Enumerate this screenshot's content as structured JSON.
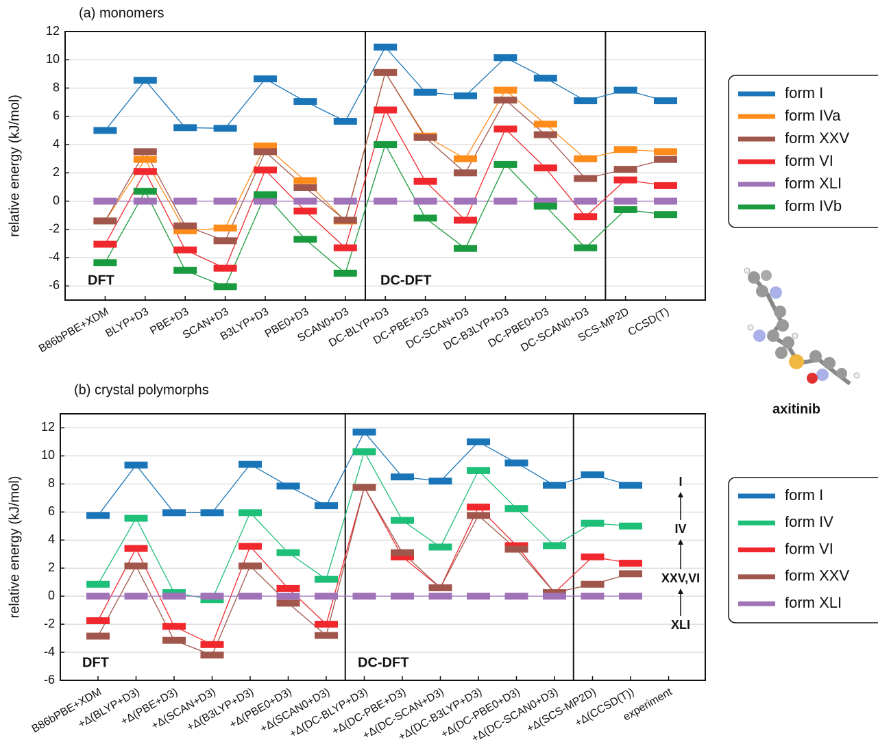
{
  "chart_data": [
    {
      "type": "line",
      "title": "(a) monomers",
      "y_label": "relative energy (kJ/mol)",
      "categories": [
        "B86bPBE+XDM",
        "BLYP+D3",
        "PBE+D3",
        "SCAN+D3",
        "B3LYP+D3",
        "PBE0+D3",
        "SCAN0+D3",
        "DC-BLYP+D3",
        "DC-PBE+D3",
        "DC-SCAN+D3",
        "DC-B3LYP+D3",
        "DC-PBE0+D3",
        "DC-SCAN0+D3",
        "SCS-MP2D",
        "CCSD(T)"
      ],
      "series": [
        {
          "name": "form I",
          "color": "#1a75b8",
          "values": [
            5.0,
            8.55,
            5.2,
            5.15,
            8.65,
            7.05,
            5.65,
            10.9,
            7.7,
            7.45,
            10.15,
            8.7,
            7.1,
            7.85,
            7.1
          ]
        },
        {
          "name": "form IVa",
          "color": "#ff8c1a",
          "values": [
            -1.4,
            2.95,
            -2.1,
            -1.9,
            3.9,
            1.45,
            -1.4,
            9.1,
            4.6,
            3.0,
            7.85,
            5.45,
            3.0,
            3.65,
            3.5
          ]
        },
        {
          "name": "form XXV",
          "color": "#a0564b",
          "values": [
            -1.4,
            3.5,
            -1.75,
            -2.8,
            3.5,
            0.95,
            -1.35,
            9.1,
            4.5,
            2.0,
            7.15,
            4.7,
            1.6,
            2.25,
            2.95
          ]
        },
        {
          "name": "form VI",
          "color": "#f0282d",
          "values": [
            -3.05,
            2.1,
            -3.45,
            -4.75,
            2.2,
            -0.7,
            -3.3,
            6.45,
            1.4,
            -1.35,
            5.1,
            2.35,
            -1.1,
            1.5,
            1.1
          ]
        },
        {
          "name": "form XLI",
          "color": "#a073b8",
          "values": [
            0,
            0,
            0,
            0,
            0,
            0,
            0,
            0,
            0,
            0,
            0,
            0,
            0,
            0,
            0
          ]
        },
        {
          "name": "form IVb",
          "color": "#1a9a3e",
          "values": [
            -4.35,
            0.7,
            -4.9,
            -6.05,
            0.45,
            -2.7,
            -5.1,
            4.0,
            -1.2,
            -3.35,
            2.6,
            -0.35,
            -3.3,
            -0.6,
            -0.95
          ]
        }
      ],
      "ylim": [
        -7,
        12
      ],
      "yticks": [
        -6,
        -4,
        -2,
        0,
        2,
        4,
        6,
        8,
        10,
        12
      ],
      "grid": true,
      "annotations": [
        "DFT",
        "DC-DFT"
      ]
    },
    {
      "type": "line",
      "title": "(b) crystal polymorphs",
      "y_label": "relative energy (kJ/mol)",
      "categories": [
        "B86bPBE+XDM",
        "+Δ(BLYP+D3)",
        "+Δ(PBE+D3)",
        "+Δ(SCAN+D3)",
        "+Δ(B3LYP+D3)",
        "+Δ(PBE0+D3)",
        "+Δ(SCAN0+D3)",
        "+Δ(DC-BLYP+D3)",
        "+Δ(DC-PBE+D3)",
        "+Δ(DC-SCAN+D3)",
        "+Δ(DC-B3LYP+D3)",
        "+Δ(DC-PBE0+D3)",
        "+Δ(DC-SCAN0+D3)",
        "+Δ(SCS-MP2D)",
        "+Δ(CCSD(T))",
        "experiment"
      ],
      "series": [
        {
          "name": "form I",
          "color": "#1a75b8",
          "values": [
            5.75,
            9.35,
            5.95,
            5.95,
            9.4,
            7.85,
            6.45,
            11.7,
            8.5,
            8.2,
            11.0,
            9.5,
            7.9,
            8.65,
            7.9,
            null
          ]
        },
        {
          "name": "form IV",
          "color": "#1ebf78",
          "values": [
            0.85,
            5.55,
            0.25,
            -0.25,
            5.95,
            3.1,
            1.2,
            10.3,
            5.4,
            3.5,
            8.95,
            6.25,
            3.6,
            5.2,
            5.0,
            null
          ]
        },
        {
          "name": "form VI",
          "color": "#f0282d",
          "values": [
            -1.75,
            3.4,
            -2.15,
            -3.45,
            3.55,
            0.55,
            -2.0,
            7.75,
            2.8,
            0.6,
            6.35,
            3.6,
            0.25,
            2.8,
            2.35,
            null
          ]
        },
        {
          "name": "form XXV",
          "color": "#a0564b",
          "values": [
            -2.85,
            2.15,
            -3.15,
            -4.2,
            2.15,
            -0.5,
            -2.8,
            7.75,
            3.1,
            0.6,
            5.75,
            3.35,
            0.25,
            0.85,
            1.6,
            null
          ]
        },
        {
          "name": "form XLI",
          "color": "#a073b8",
          "values": [
            0,
            0,
            0,
            0,
            0,
            0,
            0,
            0,
            0,
            0,
            0,
            0,
            0,
            0,
            0,
            null
          ]
        }
      ],
      "ylim": [
        -6,
        13
      ],
      "yticks": [
        -6,
        -4,
        -2,
        0,
        2,
        4,
        6,
        8,
        10,
        12
      ],
      "grid": true,
      "annotations": [
        "DFT",
        "DC-DFT"
      ],
      "experiment_labels": [
        "I",
        "IV",
        "XXV,VI",
        "XLI"
      ],
      "experiment_label_colors": [
        "#1a75b8",
        "#1ebf78",
        "#b0403a",
        "#a073b8"
      ]
    }
  ],
  "molecule_label": "axitinib"
}
